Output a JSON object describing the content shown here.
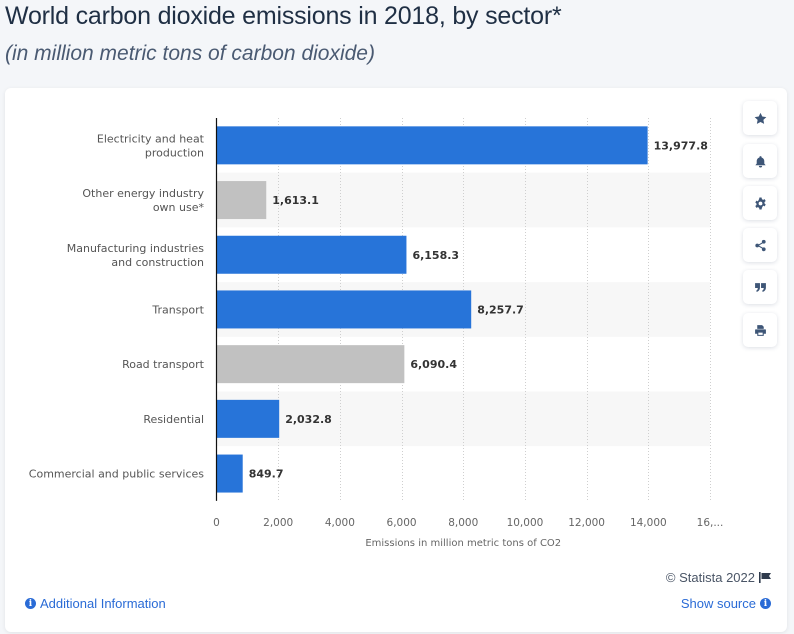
{
  "header": {
    "title": "World carbon dioxide emissions in 2018, by sector*",
    "subtitle": "(in million metric tons of carbon dioxide)"
  },
  "side_buttons": [
    {
      "name": "favorite-button",
      "icon": "star-icon"
    },
    {
      "name": "notification-button",
      "icon": "bell-icon"
    },
    {
      "name": "settings-button",
      "icon": "gear-icon"
    },
    {
      "name": "share-button",
      "icon": "share-icon"
    },
    {
      "name": "cite-button",
      "icon": "quote-icon"
    },
    {
      "name": "print-button",
      "icon": "printer-icon"
    }
  ],
  "footer": {
    "copyright": "© Statista 2022",
    "additional_info": "Additional Information",
    "show_source": "Show source"
  },
  "colors": {
    "primary_bar": "#2774d9",
    "secondary_bar": "#c1c1c1",
    "link": "#2a6bd6"
  },
  "chart_data": {
    "type": "bar",
    "orientation": "horizontal",
    "title": "World carbon dioxide emissions in 2018, by sector*",
    "subtitle": "(in million metric tons of carbon dioxide)",
    "xlabel": "Emissions in million metric tons of CO2",
    "ylabel": "",
    "categories": [
      "Electricity and heat production",
      "Other energy industry own use*",
      "Manufacturing industries and construction",
      "Transport",
      "Road transport",
      "Residential",
      "Commercial and public services"
    ],
    "category_lines": [
      [
        "Electricity and heat",
        "production"
      ],
      [
        "Other energy industry",
        "own use*"
      ],
      [
        "Manufacturing industries",
        "and construction"
      ],
      [
        "Transport"
      ],
      [
        "Road transport"
      ],
      [
        "Residential"
      ],
      [
        "Commercial and public services"
      ]
    ],
    "values": [
      13977.8,
      1613.1,
      6158.3,
      8257.7,
      6090.4,
      2032.8,
      849.7
    ],
    "value_labels": [
      "13,977.8",
      "1,613.1",
      "6,158.3",
      "8,257.7",
      "6,090.4",
      "2,032.8",
      "849.7"
    ],
    "bar_style": [
      "primary",
      "secondary",
      "primary",
      "primary",
      "secondary",
      "primary",
      "primary"
    ],
    "xlim": [
      0,
      16000
    ],
    "xticks": [
      0,
      2000,
      4000,
      6000,
      8000,
      10000,
      12000,
      14000,
      16000
    ],
    "xtick_labels": [
      "0",
      "2,000",
      "4,000",
      "6,000",
      "8,000",
      "10,000",
      "12,000",
      "14,000",
      "16,..."
    ],
    "grid": true,
    "legend": "none"
  }
}
